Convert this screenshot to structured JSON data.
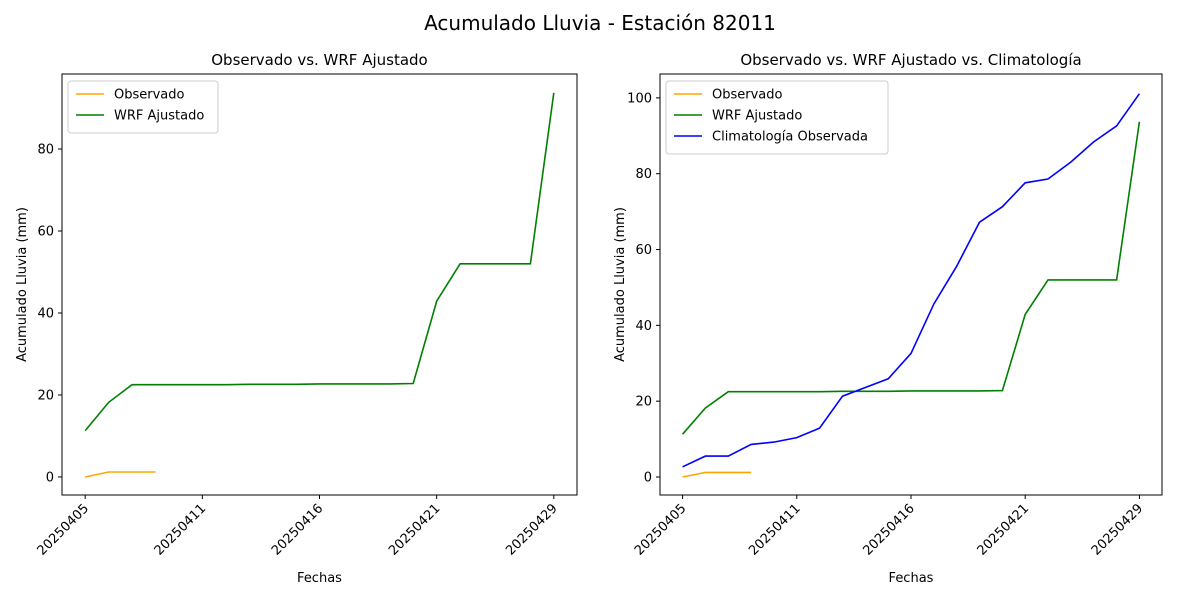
{
  "title": "Acumulado Lluvia - Estación 82011",
  "chart_data": [
    {
      "type": "line",
      "title": "Observado vs. WRF Ajustado",
      "x_label": "Fechas",
      "y_label": "Acumulado Lluvia (mm)",
      "categories": [
        "20250405",
        null,
        null,
        null,
        null,
        "20250411",
        null,
        null,
        null,
        null,
        "20250416",
        null,
        null,
        null,
        null,
        "20250421",
        null,
        null,
        null,
        null,
        "20250429"
      ],
      "series": [
        {
          "name": "Observado",
          "color": "orange",
          "values": [
            0,
            1.2,
            1.2,
            1.2,
            null,
            null,
            null,
            null,
            null,
            null,
            null,
            null,
            null,
            null,
            null,
            null,
            null,
            null,
            null,
            null,
            null
          ]
        },
        {
          "name": "WRF Ajustado",
          "color": "green",
          "values": [
            11.3,
            18.2,
            22.5,
            22.5,
            22.5,
            22.5,
            22.5,
            22.6,
            22.6,
            22.6,
            22.7,
            22.7,
            22.7,
            22.7,
            22.8,
            42.9,
            52,
            52,
            52,
            52,
            93.7
          ]
        }
      ],
      "ylim": [
        -4.4,
        98.3
      ],
      "yticks": [
        0,
        20,
        40,
        60,
        80
      ],
      "legend": "upper left"
    },
    {
      "type": "line",
      "title": "Observado vs. WRF Ajustado vs. Climatología",
      "x_label": "Fechas",
      "y_label": "Acumulado Lluvia (mm)",
      "categories": [
        "20250405",
        null,
        null,
        null,
        null,
        "20250411",
        null,
        null,
        null,
        null,
        "20250416",
        null,
        null,
        null,
        null,
        "20250421",
        null,
        null,
        null,
        null,
        "20250429"
      ],
      "series": [
        {
          "name": "Observado",
          "color": "orange",
          "values": [
            0,
            1.2,
            1.2,
            1.2,
            null,
            null,
            null,
            null,
            null,
            null,
            null,
            null,
            null,
            null,
            null,
            null,
            null,
            null,
            null,
            null,
            null
          ]
        },
        {
          "name": "WRF Ajustado",
          "color": "green",
          "values": [
            11.3,
            18.2,
            22.5,
            22.5,
            22.5,
            22.5,
            22.5,
            22.6,
            22.6,
            22.6,
            22.7,
            22.7,
            22.7,
            22.7,
            22.8,
            42.9,
            52,
            52,
            52,
            52,
            93.7
          ]
        },
        {
          "name": "Climatología Observada",
          "color": "blue",
          "values": [
            2.7,
            5.5,
            5.5,
            8.6,
            9.2,
            10.4,
            12.9,
            21.3,
            23.6,
            25.9,
            32.6,
            45.6,
            55.6,
            67.2,
            71.3,
            77.6,
            78.6,
            83.1,
            88.4,
            92.6,
            101.1
          ]
        }
      ],
      "ylim": [
        -4.75,
        106.3
      ],
      "yticks": [
        0,
        20,
        40,
        60,
        80,
        100
      ],
      "legend": "upper left"
    }
  ]
}
